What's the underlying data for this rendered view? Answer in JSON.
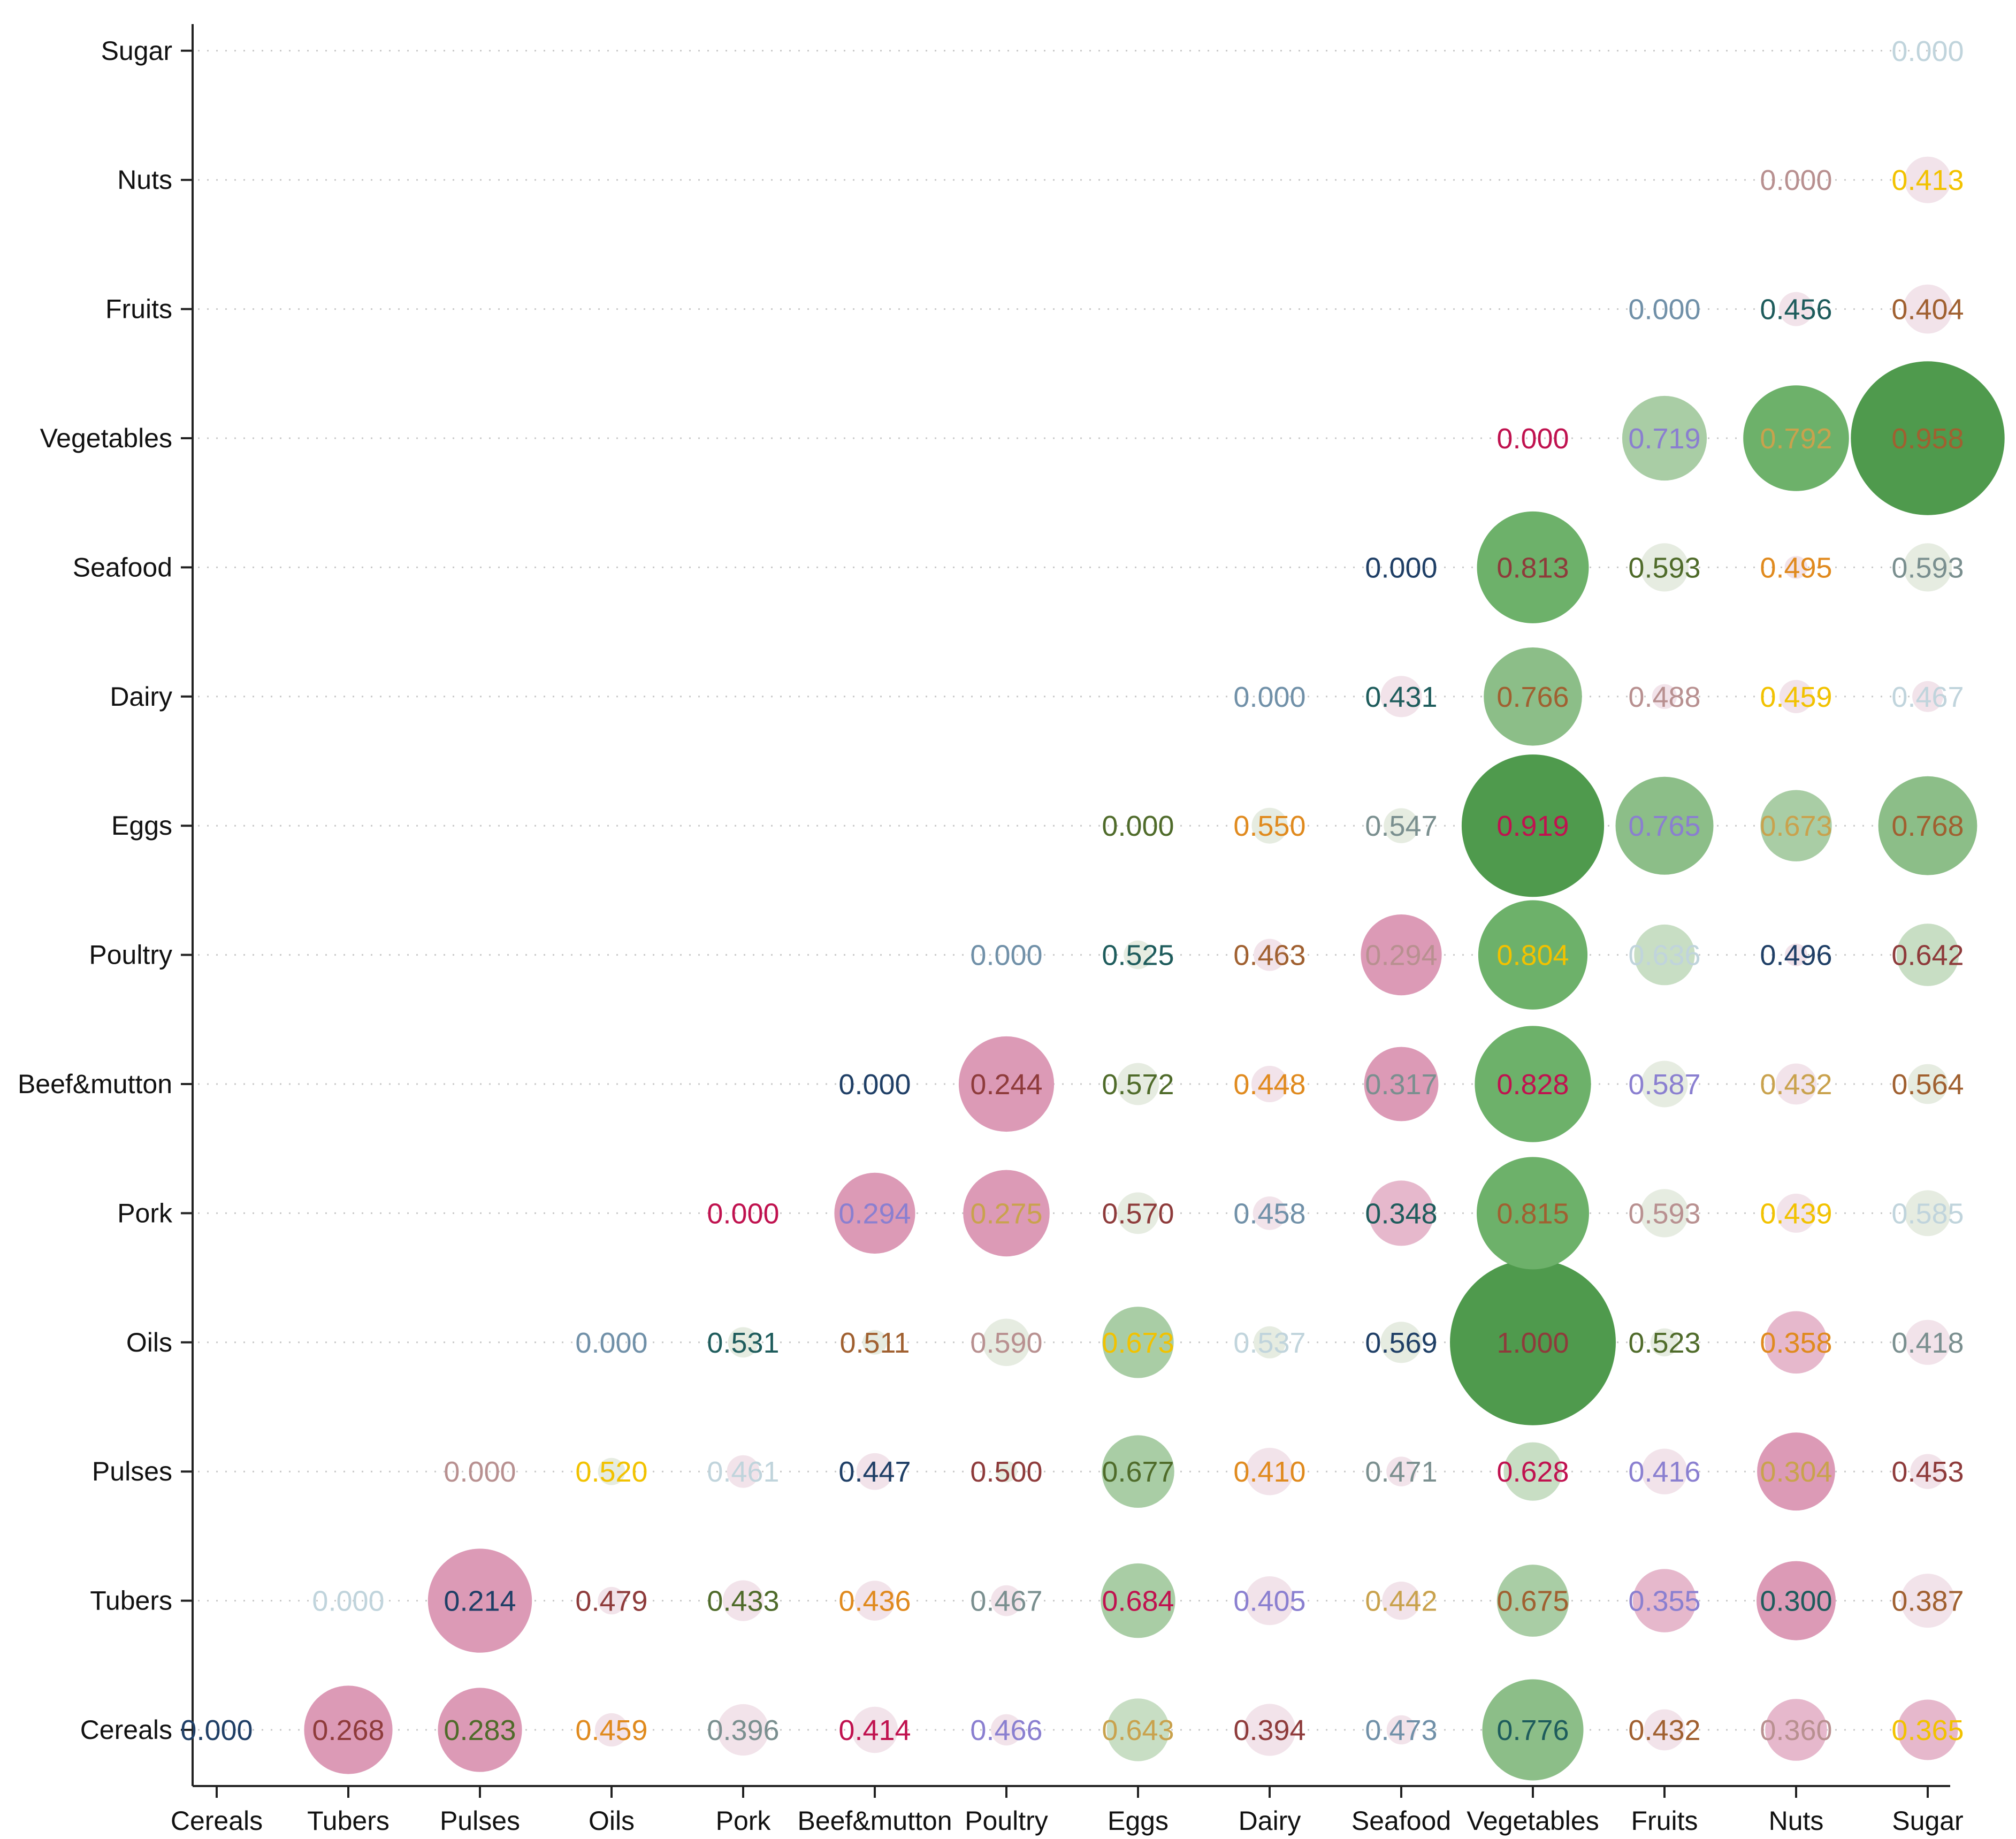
{
  "chart_data": {
    "type": "bubble",
    "title": "",
    "xlabel": "",
    "ylabel": "",
    "categories": [
      "Cereals",
      "Tubers",
      "Pulses",
      "Oils",
      "Pork",
      "Beef&mutton",
      "Poultry",
      "Eggs",
      "Dairy",
      "Seafood",
      "Vegetables",
      "Fruits",
      "Nuts",
      "Sugar"
    ],
    "grid": true,
    "legend": "none",
    "colors": {
      "pink_light": "#f2e3ea",
      "pink": "#e6b8cc",
      "pink_dark": "#dc9ab6",
      "green_light": "#e6ece1",
      "green_mid": "#c8dec4",
      "green": "#a9cda5",
      "green_deep": "#8cbe88",
      "green_strong": "#6db16a",
      "green_darkest": "#4f9a4d",
      "label_palette": [
        "#1f3f66",
        "#8e3b3b",
        "#4f6b2a",
        "#e08a1e",
        "#7a8f8f",
        "#c0124f",
        "#8a7fd0",
        "#c9a24d",
        "#1e5c5c",
        "#f2c200",
        "#b89090",
        "#7090a8",
        "#a06030",
        "#c0d4dc"
      ]
    },
    "cells": [
      {
        "row": "Cereals",
        "col": "Cereals",
        "value": "0.000",
        "c": 0
      },
      {
        "row": "Cereals",
        "col": "Tubers",
        "value": "0.268",
        "c": 1
      },
      {
        "row": "Cereals",
        "col": "Pulses",
        "value": "0.283",
        "c": 2
      },
      {
        "row": "Cereals",
        "col": "Oils",
        "value": "0.459",
        "c": 3
      },
      {
        "row": "Cereals",
        "col": "Pork",
        "value": "0.396",
        "c": 4
      },
      {
        "row": "Cereals",
        "col": "Beef&mutton",
        "value": "0.414",
        "c": 5
      },
      {
        "row": "Cereals",
        "col": "Poultry",
        "value": "0.466",
        "c": 6
      },
      {
        "row": "Cereals",
        "col": "Eggs",
        "value": "0.643",
        "c": 7
      },
      {
        "row": "Cereals",
        "col": "Dairy",
        "value": "0.394",
        "c": 1
      },
      {
        "row": "Cereals",
        "col": "Seafood",
        "value": "0.473",
        "c": 11
      },
      {
        "row": "Cereals",
        "col": "Vegetables",
        "value": "0.776",
        "c": 8
      },
      {
        "row": "Cereals",
        "col": "Fruits",
        "value": "0.432",
        "c": 12
      },
      {
        "row": "Cereals",
        "col": "Nuts",
        "value": "0.360",
        "c": 10
      },
      {
        "row": "Cereals",
        "col": "Sugar",
        "value": "0.365",
        "c": 9
      },
      {
        "row": "Tubers",
        "col": "Tubers",
        "value": "0.000",
        "c": 13
      },
      {
        "row": "Tubers",
        "col": "Pulses",
        "value": "0.214",
        "c": 0
      },
      {
        "row": "Tubers",
        "col": "Oils",
        "value": "0.479",
        "c": 1
      },
      {
        "row": "Tubers",
        "col": "Pork",
        "value": "0.433",
        "c": 2
      },
      {
        "row": "Tubers",
        "col": "Beef&mutton",
        "value": "0.436",
        "c": 3
      },
      {
        "row": "Tubers",
        "col": "Poultry",
        "value": "0.467",
        "c": 4
      },
      {
        "row": "Tubers",
        "col": "Eggs",
        "value": "0.684",
        "c": 5
      },
      {
        "row": "Tubers",
        "col": "Dairy",
        "value": "0.405",
        "c": 6
      },
      {
        "row": "Tubers",
        "col": "Seafood",
        "value": "0.442",
        "c": 7
      },
      {
        "row": "Tubers",
        "col": "Vegetables",
        "value": "0.675",
        "c": 12
      },
      {
        "row": "Tubers",
        "col": "Fruits",
        "value": "0.355",
        "c": 6
      },
      {
        "row": "Tubers",
        "col": "Nuts",
        "value": "0.300",
        "c": 8
      },
      {
        "row": "Tubers",
        "col": "Sugar",
        "value": "0.387",
        "c": 12
      },
      {
        "row": "Pulses",
        "col": "Pulses",
        "value": "0.000",
        "c": 10
      },
      {
        "row": "Pulses",
        "col": "Oils",
        "value": "0.520",
        "c": 9
      },
      {
        "row": "Pulses",
        "col": "Pork",
        "value": "0.461",
        "c": 13
      },
      {
        "row": "Pulses",
        "col": "Beef&mutton",
        "value": "0.447",
        "c": 0
      },
      {
        "row": "Pulses",
        "col": "Poultry",
        "value": "0.500",
        "c": 1
      },
      {
        "row": "Pulses",
        "col": "Eggs",
        "value": "0.677",
        "c": 2
      },
      {
        "row": "Pulses",
        "col": "Dairy",
        "value": "0.410",
        "c": 3
      },
      {
        "row": "Pulses",
        "col": "Seafood",
        "value": "0.471",
        "c": 4
      },
      {
        "row": "Pulses",
        "col": "Vegetables",
        "value": "0.628",
        "c": 5
      },
      {
        "row": "Pulses",
        "col": "Fruits",
        "value": "0.416",
        "c": 6
      },
      {
        "row": "Pulses",
        "col": "Nuts",
        "value": "0.304",
        "c": 7
      },
      {
        "row": "Pulses",
        "col": "Sugar",
        "value": "0.453",
        "c": 1
      },
      {
        "row": "Oils",
        "col": "Oils",
        "value": "0.000",
        "c": 11
      },
      {
        "row": "Oils",
        "col": "Pork",
        "value": "0.531",
        "c": 8
      },
      {
        "row": "Oils",
        "col": "Beef&mutton",
        "value": "0.511",
        "c": 12
      },
      {
        "row": "Oils",
        "col": "Poultry",
        "value": "0.590",
        "c": 10
      },
      {
        "row": "Oils",
        "col": "Eggs",
        "value": "0.673",
        "c": 9
      },
      {
        "row": "Oils",
        "col": "Dairy",
        "value": "0.537",
        "c": 13
      },
      {
        "row": "Oils",
        "col": "Seafood",
        "value": "0.569",
        "c": 0
      },
      {
        "row": "Oils",
        "col": "Vegetables",
        "value": "1.000",
        "c": 1
      },
      {
        "row": "Oils",
        "col": "Fruits",
        "value": "0.523",
        "c": 2
      },
      {
        "row": "Oils",
        "col": "Nuts",
        "value": "0.358",
        "c": 3
      },
      {
        "row": "Oils",
        "col": "Sugar",
        "value": "0.418",
        "c": 4
      },
      {
        "row": "Pork",
        "col": "Pork",
        "value": "0.000",
        "c": 5
      },
      {
        "row": "Pork",
        "col": "Beef&mutton",
        "value": "0.294",
        "c": 6
      },
      {
        "row": "Pork",
        "col": "Poultry",
        "value": "0.275",
        "c": 7
      },
      {
        "row": "Pork",
        "col": "Eggs",
        "value": "0.570",
        "c": 1
      },
      {
        "row": "Pork",
        "col": "Dairy",
        "value": "0.458",
        "c": 11
      },
      {
        "row": "Pork",
        "col": "Seafood",
        "value": "0.348",
        "c": 8
      },
      {
        "row": "Pork",
        "col": "Vegetables",
        "value": "0.815",
        "c": 12
      },
      {
        "row": "Pork",
        "col": "Fruits",
        "value": "0.593",
        "c": 10
      },
      {
        "row": "Pork",
        "col": "Nuts",
        "value": "0.439",
        "c": 9
      },
      {
        "row": "Pork",
        "col": "Sugar",
        "value": "0.585",
        "c": 13
      },
      {
        "row": "Beef&mutton",
        "col": "Beef&mutton",
        "value": "0.000",
        "c": 0
      },
      {
        "row": "Beef&mutton",
        "col": "Poultry",
        "value": "0.244",
        "c": 1
      },
      {
        "row": "Beef&mutton",
        "col": "Eggs",
        "value": "0.572",
        "c": 2
      },
      {
        "row": "Beef&mutton",
        "col": "Dairy",
        "value": "0.448",
        "c": 3
      },
      {
        "row": "Beef&mutton",
        "col": "Seafood",
        "value": "0.317",
        "c": 4
      },
      {
        "row": "Beef&mutton",
        "col": "Vegetables",
        "value": "0.828",
        "c": 5
      },
      {
        "row": "Beef&mutton",
        "col": "Fruits",
        "value": "0.587",
        "c": 6
      },
      {
        "row": "Beef&mutton",
        "col": "Nuts",
        "value": "0.432",
        "c": 7
      },
      {
        "row": "Beef&mutton",
        "col": "Sugar",
        "value": "0.564",
        "c": 12
      },
      {
        "row": "Poultry",
        "col": "Poultry",
        "value": "0.000",
        "c": 11
      },
      {
        "row": "Poultry",
        "col": "Eggs",
        "value": "0.525",
        "c": 8
      },
      {
        "row": "Poultry",
        "col": "Dairy",
        "value": "0.463",
        "c": 12
      },
      {
        "row": "Poultry",
        "col": "Seafood",
        "value": "0.294",
        "c": 10
      },
      {
        "row": "Poultry",
        "col": "Vegetables",
        "value": "0.804",
        "c": 9
      },
      {
        "row": "Poultry",
        "col": "Fruits",
        "value": "0.636",
        "c": 13
      },
      {
        "row": "Poultry",
        "col": "Nuts",
        "value": "0.496",
        "c": 0
      },
      {
        "row": "Poultry",
        "col": "Sugar",
        "value": "0.642",
        "c": 1
      },
      {
        "row": "Eggs",
        "col": "Eggs",
        "value": "0.000",
        "c": 2
      },
      {
        "row": "Eggs",
        "col": "Dairy",
        "value": "0.550",
        "c": 3
      },
      {
        "row": "Eggs",
        "col": "Seafood",
        "value": "0.547",
        "c": 4
      },
      {
        "row": "Eggs",
        "col": "Vegetables",
        "value": "0.919",
        "c": 5
      },
      {
        "row": "Eggs",
        "col": "Fruits",
        "value": "0.765",
        "c": 6
      },
      {
        "row": "Eggs",
        "col": "Nuts",
        "value": "0.673",
        "c": 7
      },
      {
        "row": "Eggs",
        "col": "Sugar",
        "value": "0.768",
        "c": 12
      },
      {
        "row": "Dairy",
        "col": "Dairy",
        "value": "0.000",
        "c": 11
      },
      {
        "row": "Dairy",
        "col": "Seafood",
        "value": "0.431",
        "c": 8
      },
      {
        "row": "Dairy",
        "col": "Vegetables",
        "value": "0.766",
        "c": 12
      },
      {
        "row": "Dairy",
        "col": "Fruits",
        "value": "0.488",
        "c": 10
      },
      {
        "row": "Dairy",
        "col": "Nuts",
        "value": "0.459",
        "c": 9
      },
      {
        "row": "Dairy",
        "col": "Sugar",
        "value": "0.467",
        "c": 13
      },
      {
        "row": "Seafood",
        "col": "Seafood",
        "value": "0.000",
        "c": 0
      },
      {
        "row": "Seafood",
        "col": "Vegetables",
        "value": "0.813",
        "c": 1
      },
      {
        "row": "Seafood",
        "col": "Fruits",
        "value": "0.593",
        "c": 2
      },
      {
        "row": "Seafood",
        "col": "Nuts",
        "value": "0.495",
        "c": 3
      },
      {
        "row": "Seafood",
        "col": "Sugar",
        "value": "0.593",
        "c": 4
      },
      {
        "row": "Vegetables",
        "col": "Vegetables",
        "value": "0.000",
        "c": 5
      },
      {
        "row": "Vegetables",
        "col": "Fruits",
        "value": "0.719",
        "c": 6
      },
      {
        "row": "Vegetables",
        "col": "Nuts",
        "value": "0.792",
        "c": 7
      },
      {
        "row": "Vegetables",
        "col": "Sugar",
        "value": "0.958",
        "c": 12
      },
      {
        "row": "Fruits",
        "col": "Fruits",
        "value": "0.000",
        "c": 11
      },
      {
        "row": "Fruits",
        "col": "Nuts",
        "value": "0.456",
        "c": 8
      },
      {
        "row": "Fruits",
        "col": "Sugar",
        "value": "0.404",
        "c": 12
      },
      {
        "row": "Nuts",
        "col": "Nuts",
        "value": "0.000",
        "c": 10
      },
      {
        "row": "Nuts",
        "col": "Sugar",
        "value": "0.413",
        "c": 9
      },
      {
        "row": "Sugar",
        "col": "Sugar",
        "value": "0.000",
        "c": 13
      }
    ]
  }
}
